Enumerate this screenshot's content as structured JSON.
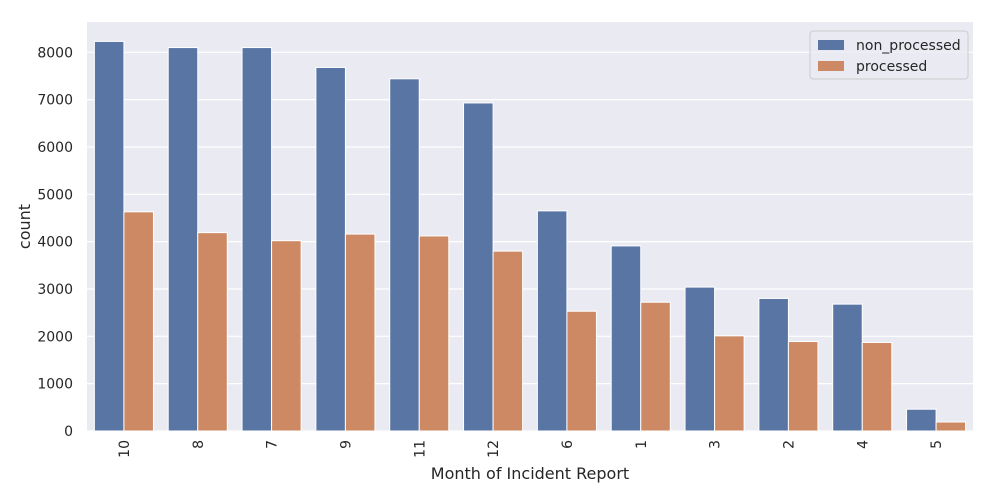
{
  "chart_data": {
    "type": "bar",
    "title": "",
    "xlabel": "Month of Incident Report",
    "ylabel": "count",
    "categories": [
      "10",
      "8",
      "7",
      "9",
      "11",
      "12",
      "6",
      "1",
      "3",
      "2",
      "4",
      "5"
    ],
    "series": [
      {
        "name": "non_processed",
        "color": "#5875a4",
        "values": [
          8230,
          8100,
          8100,
          7680,
          7440,
          6930,
          4650,
          3910,
          3040,
          2800,
          2680,
          460
        ]
      },
      {
        "name": "processed",
        "color": "#cc8963",
        "values": [
          4630,
          4190,
          4020,
          4160,
          4120,
          3800,
          2530,
          2720,
          2010,
          1890,
          1870,
          190
        ]
      }
    ],
    "yticks": [
      0,
      1000,
      2000,
      3000,
      4000,
      5000,
      6000,
      7000,
      8000
    ],
    "ylim": [
      0,
      8640
    ],
    "grid": true,
    "legend": "top-right",
    "background": "#eaeaf2"
  }
}
